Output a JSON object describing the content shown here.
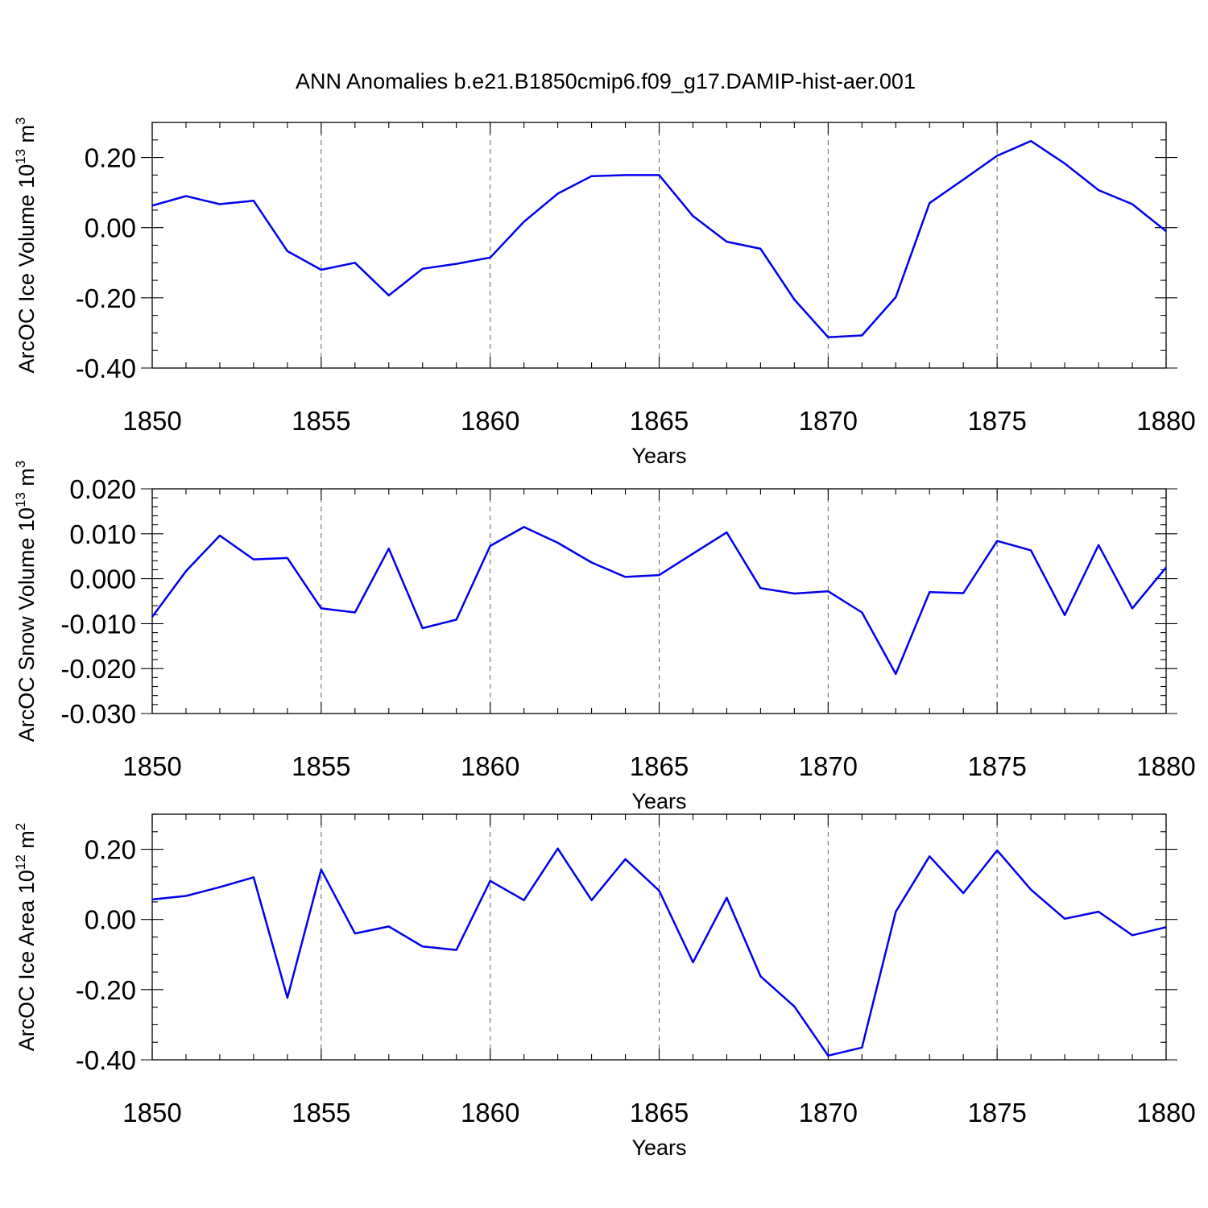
{
  "title": "ANN Anomalies b.e21.B1850cmip6.f09_g17.DAMIP-hist-aer.001",
  "line_color": "#0000ee",
  "chart_data": [
    {
      "type": "line",
      "ylabel_main": "ArcOC Ice Volume 10",
      "ylabel_exp": "13",
      "ylabel_unit": " m",
      "ylabel_unit_exp": "3",
      "xlabel": "Years",
      "xlim": [
        1850,
        1880
      ],
      "xticks": [
        1850,
        1855,
        1860,
        1865,
        1870,
        1875,
        1880
      ],
      "xtick_labels": [
        "1850",
        "1855",
        "1860",
        "1865",
        "1870",
        "1875",
        "1880"
      ],
      "ylim": [
        -0.4,
        0.3
      ],
      "yticks": [
        -0.4,
        -0.2,
        0.0,
        0.2
      ],
      "ytick_labels": [
        "-0.40",
        "-0.20",
        "0.00",
        "0.20"
      ],
      "yminor_step": 0.05,
      "x": [
        1850,
        1851,
        1852,
        1853,
        1854,
        1855,
        1856,
        1857,
        1858,
        1859,
        1860,
        1861,
        1862,
        1863,
        1864,
        1865,
        1866,
        1867,
        1868,
        1869,
        1870,
        1871,
        1872,
        1873,
        1874,
        1875,
        1876,
        1877,
        1878,
        1879,
        1880
      ],
      "y": [
        0.063,
        0.09,
        0.067,
        0.077,
        -0.067,
        -0.12,
        -0.1,
        -0.193,
        -0.117,
        -0.103,
        -0.085,
        0.017,
        0.097,
        0.147,
        0.15,
        0.15,
        0.033,
        -0.04,
        -0.06,
        -0.205,
        -0.312,
        -0.307,
        -0.198,
        0.07,
        0.137,
        0.205,
        0.247,
        0.183,
        0.107,
        0.067,
        -0.01
      ]
    },
    {
      "type": "line",
      "ylabel_main": "ArcOC Snow Volume 10",
      "ylabel_exp": "13",
      "ylabel_unit": " m",
      "ylabel_unit_exp": "3",
      "xlabel": "Years",
      "xlim": [
        1850,
        1880
      ],
      "xticks": [
        1850,
        1855,
        1860,
        1865,
        1870,
        1875,
        1880
      ],
      "xtick_labels": [
        "1850",
        "1855",
        "1860",
        "1865",
        "1870",
        "1875",
        "1880"
      ],
      "ylim": [
        -0.03,
        0.02
      ],
      "yticks": [
        -0.03,
        -0.02,
        -0.01,
        0.0,
        0.01,
        0.02
      ],
      "ytick_labels": [
        "-0.030",
        "-0.020",
        "-0.010",
        "0.000",
        "0.010",
        "0.020"
      ],
      "yminor_step": 0.002,
      "x": [
        1850,
        1851,
        1852,
        1853,
        1854,
        1855,
        1856,
        1857,
        1858,
        1859,
        1860,
        1861,
        1862,
        1863,
        1864,
        1865,
        1866,
        1867,
        1868,
        1869,
        1870,
        1871,
        1872,
        1873,
        1874,
        1875,
        1876,
        1877,
        1878,
        1879,
        1880
      ],
      "y": [
        -0.0085,
        0.0017,
        0.0096,
        0.0043,
        0.0046,
        -0.0066,
        -0.0075,
        0.0067,
        -0.011,
        -0.0091,
        0.0073,
        0.0115,
        0.008,
        0.0036,
        0.0004,
        0.0008,
        0.0056,
        0.0103,
        -0.0021,
        -0.0033,
        -0.0028,
        -0.0075,
        -0.0212,
        -0.003,
        -0.0032,
        0.0084,
        0.0063,
        -0.0081,
        0.0075,
        -0.0066,
        0.0025
      ]
    },
    {
      "type": "line",
      "ylabel_main": "ArcOC Ice Area 10",
      "ylabel_exp": "12",
      "ylabel_unit": " m",
      "ylabel_unit_exp": "2",
      "xlabel": "Years",
      "xlim": [
        1850,
        1880
      ],
      "xticks": [
        1850,
        1855,
        1860,
        1865,
        1870,
        1875,
        1880
      ],
      "xtick_labels": [
        "1850",
        "1855",
        "1860",
        "1865",
        "1870",
        "1875",
        "1880"
      ],
      "ylim": [
        -0.4,
        0.3
      ],
      "yticks": [
        -0.4,
        -0.2,
        0.0,
        0.2
      ],
      "ytick_labels": [
        "-0.40",
        "-0.20",
        "0.00",
        "0.20"
      ],
      "yminor_step": 0.05,
      "x": [
        1850,
        1851,
        1852,
        1853,
        1854,
        1855,
        1856,
        1857,
        1858,
        1859,
        1860,
        1861,
        1862,
        1863,
        1864,
        1865,
        1866,
        1867,
        1868,
        1869,
        1870,
        1871,
        1872,
        1873,
        1874,
        1875,
        1876,
        1877,
        1878,
        1879,
        1880
      ],
      "y": [
        0.057,
        0.067,
        0.092,
        0.12,
        -0.223,
        0.142,
        -0.04,
        -0.02,
        -0.077,
        -0.087,
        0.11,
        0.055,
        0.202,
        0.055,
        0.172,
        0.082,
        -0.122,
        0.062,
        -0.162,
        -0.248,
        -0.388,
        -0.365,
        0.022,
        0.18,
        0.075,
        0.197,
        0.085,
        0.002,
        0.022,
        -0.045,
        -0.022
      ]
    }
  ]
}
